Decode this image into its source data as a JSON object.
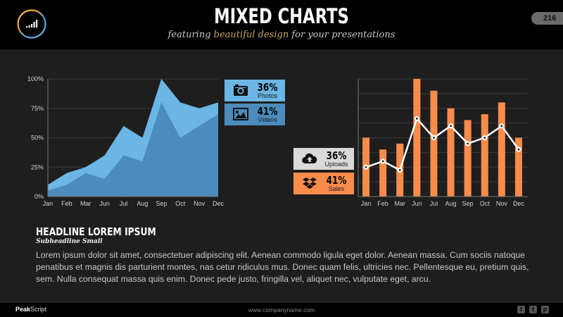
{
  "header": {
    "title": "MIXED CHARTS",
    "subtitle_pre": "featuring ",
    "subtitle_accent": "beautiful design",
    "subtitle_post": " for your presentations",
    "page_number": "216",
    "logo_icon": "signal-bars-icon"
  },
  "colors": {
    "area_light": "#6bb6e4",
    "area_dark": "#4b8cbd",
    "bar": "#f98b4b",
    "line": "#ffffff",
    "accent_gold": "#c9a85c"
  },
  "legends": {
    "photos": {
      "value": "36%",
      "label": "Photos",
      "icon": "camera-icon",
      "color": "#6bb6e4"
    },
    "videos": {
      "value": "41%",
      "label": "Videos",
      "icon": "image-icon",
      "color": "#4b8cbd"
    },
    "uploads": {
      "value": "36%",
      "label": "Uploads",
      "icon": "cloud-upload-icon",
      "color": "#d9d9d9"
    },
    "sales": {
      "value": "41%",
      "label": "Sales",
      "icon": "dropbox-icon",
      "color": "#f98b4b"
    }
  },
  "chart_data": [
    {
      "type": "area",
      "categories": [
        "Jan",
        "Feb",
        "Mar",
        "Jun",
        "Jul",
        "Aug",
        "Sep",
        "Oct",
        "Nov",
        "Dec"
      ],
      "yticks": [
        "0%",
        "25%",
        "50%",
        "75%",
        "100%"
      ],
      "ylim": [
        0,
        100
      ],
      "grid": true,
      "series": [
        {
          "name": "Photos",
          "values": [
            10,
            20,
            25,
            35,
            60,
            50,
            100,
            80,
            75,
            80
          ]
        },
        {
          "name": "Videos",
          "values": [
            5,
            10,
            20,
            15,
            35,
            30,
            80,
            50,
            60,
            70
          ]
        }
      ],
      "legend": "right"
    },
    {
      "type": "bar",
      "categories": [
        "Jan",
        "Feb",
        "Mar",
        "Jun",
        "Jul",
        "Aug",
        "Sep",
        "Oct",
        "Nov",
        "Dec"
      ],
      "ylim": [
        0,
        8
      ],
      "grid": true,
      "series": [
        {
          "name": "Sales",
          "type": "bar",
          "values": [
            4,
            3.2,
            3.6,
            8,
            7.2,
            6,
            5.2,
            5.6,
            6.4,
            4
          ]
        },
        {
          "name": "Uploads",
          "type": "line",
          "values": [
            2,
            2.4,
            1.8,
            5.3,
            4,
            4.8,
            3.6,
            4,
            4.8,
            3.2
          ]
        }
      ],
      "legend": "left"
    }
  ],
  "content": {
    "headline": "HEADLINE LOREM IPSUM",
    "subheadline": "Subheadline Small",
    "body": "Lorem ipsum dolor sit amet, consectetuer adipiscing elit. Aenean commodo ligula eget dolor. Aenean massa. Cum sociis natoque penatibus et magnis dis parturient montes, nas cetur ridiculus mus. Donec quam felis, ultricies nec. Pellentesque eu, pretium quis, sem. Nulla consequat massa quis enim. Donec pede justo, fringilla vel, aliquet nec, vulputate eget, arcu."
  },
  "footer": {
    "brand_bold": "Peak",
    "brand_rest": "Script",
    "url": "www.companyname.com",
    "social": [
      {
        "icon": "facebook-icon",
        "glyph": "f"
      },
      {
        "icon": "twitter-icon",
        "glyph": "t"
      },
      {
        "icon": "pinterest-icon",
        "glyph": "p"
      }
    ]
  }
}
